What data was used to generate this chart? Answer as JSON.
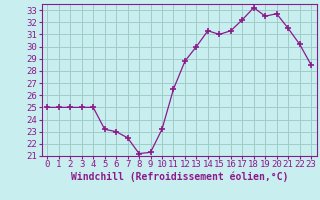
{
  "x": [
    0,
    1,
    2,
    3,
    4,
    5,
    6,
    7,
    8,
    9,
    10,
    11,
    12,
    13,
    14,
    15,
    16,
    17,
    18,
    19,
    20,
    21,
    22,
    23
  ],
  "y": [
    25.0,
    25.0,
    25.0,
    25.0,
    25.0,
    23.2,
    23.0,
    22.5,
    21.2,
    21.3,
    23.2,
    26.5,
    28.8,
    30.0,
    31.3,
    31.0,
    31.3,
    32.2,
    33.2,
    32.5,
    32.7,
    31.5,
    30.2,
    28.5
  ],
  "line_color": "#8b1a8b",
  "marker": "+",
  "marker_size": 4,
  "marker_lw": 1.2,
  "bg_color": "#c8eef0",
  "grid_color": "#a0ccc8",
  "xlabel": "Windchill (Refroidissement éolien,°C)",
  "xlabel_color": "#8b1a8b",
  "xlim": [
    -0.5,
    23.5
  ],
  "ylim": [
    21,
    33.5
  ],
  "yticks": [
    21,
    22,
    23,
    24,
    25,
    26,
    27,
    28,
    29,
    30,
    31,
    32,
    33
  ],
  "xticks": [
    0,
    1,
    2,
    3,
    4,
    5,
    6,
    7,
    8,
    9,
    10,
    11,
    12,
    13,
    14,
    15,
    16,
    17,
    18,
    19,
    20,
    21,
    22,
    23
  ],
  "tick_color": "#8b1a8b",
  "spine_color": "#8b1a8b",
  "font_size": 6.5,
  "label_font_size": 7.0,
  "line_width": 0.9
}
